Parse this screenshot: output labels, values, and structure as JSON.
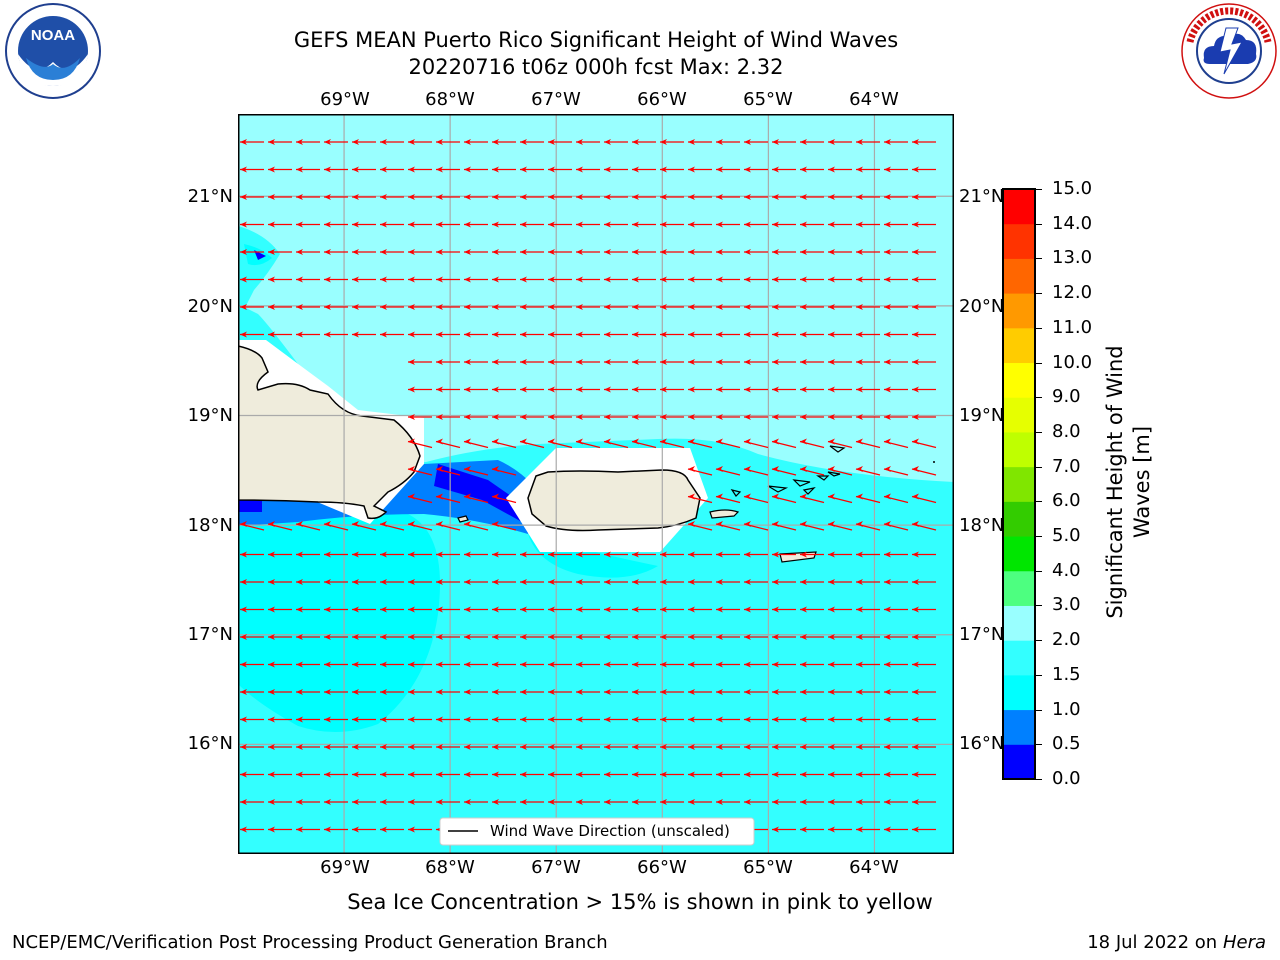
{
  "header": {
    "title_line1": "GEFS MEAN Puerto Rico Significant Height of Wind Waves",
    "title_line2": "20220716 t06z 000h fcst   Max: 2.32"
  },
  "logos": {
    "noaa": {
      "text": "NOAA",
      "ring_text": "NATIONAL OCEANIC AND ATMOSPHERIC ADMINISTRATION · U.S. DEPARTMENT OF COMMERCE"
    },
    "nws": {
      "ring_text": "NATIONAL WEATHER SERVICE"
    }
  },
  "map": {
    "lon_range": [
      -70.0,
      -63.25
    ],
    "lat_range": [
      15.0,
      21.75
    ],
    "lon_ticks": [
      "69°W",
      "68°W",
      "67°W",
      "66°W",
      "65°W",
      "64°W"
    ],
    "lon_tick_values": [
      -69,
      -68,
      -67,
      -66,
      -65,
      -64
    ],
    "lat_ticks": [
      "21°N",
      "20°N",
      "19°N",
      "18°N",
      "17°N",
      "16°N"
    ],
    "lat_tick_values": [
      21,
      20,
      19,
      18,
      17,
      16
    ],
    "legend_label": "Wind Wave Direction (unscaled)",
    "arrow_color": "#ff0000",
    "arrow_direction": "west",
    "grid": true,
    "colors": {
      "ocean_light": "#99ffff",
      "ocean_mid": "#33ffff",
      "ocean_cyan": "#00ffff",
      "low_blue": "#0080ff",
      "lowest_blue": "#0000ff",
      "land": "#efecdc"
    }
  },
  "colorbar": {
    "label_line1": "Significant Height of Wind",
    "label_line2": "Waves [m]",
    "levels": [
      "0.0",
      "0.5",
      "1.0",
      "1.5",
      "2.0",
      "3.0",
      "4.0",
      "5.0",
      "6.0",
      "7.0",
      "8.0",
      "9.0",
      "10.0",
      "11.0",
      "12.0",
      "13.0",
      "14.0",
      "15.0"
    ],
    "colors": [
      "#0000ff",
      "#0080ff",
      "#00ffff",
      "#33ffff",
      "#99ffff",
      "#4dff80",
      "#00e600",
      "#33cc00",
      "#80e600",
      "#bfff00",
      "#e6ff00",
      "#ffff00",
      "#ffcc00",
      "#ff9900",
      "#ff6600",
      "#ff3300",
      "#ff0000"
    ]
  },
  "notes": {
    "sea_ice": "Sea Ice Concentration > 15% is shown in pink to yellow"
  },
  "footer": {
    "left": "NCEP/EMC/Verification Post Processing Product Generation Branch",
    "right_prefix": "18 Jul 2022 on ",
    "right_host": "Hera"
  }
}
